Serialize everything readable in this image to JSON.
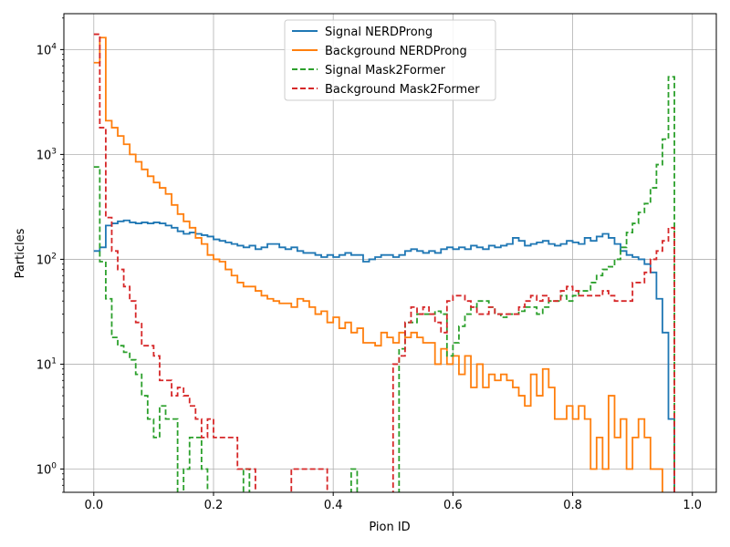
{
  "chart_data": {
    "type": "line",
    "xlabel": "Pion ID",
    "ylabel": "Particles",
    "xlim": [
      -0.05,
      1.04
    ],
    "ylim": [
      0.6,
      22000
    ],
    "yscale": "log",
    "grid": true,
    "legend_position": "top-center",
    "x_ticks": [
      "0.0",
      "0.2",
      "0.4",
      "0.6",
      "0.8",
      "1.0"
    ],
    "x_tick_values": [
      0,
      0.2,
      0.4,
      0.6,
      0.8,
      1.0
    ],
    "y_ticks": [
      "10^0",
      "10^1",
      "10^2",
      "10^3",
      "10^4"
    ],
    "y_tick_values": [
      1,
      10,
      100,
      1000,
      10000
    ],
    "bin_width": 0.01,
    "series": [
      {
        "name": "Signal NERDProng",
        "color": "#1f77b4",
        "dashed": false,
        "values": [
          120,
          130,
          210,
          220,
          230,
          235,
          225,
          220,
          225,
          220,
          225,
          220,
          210,
          200,
          185,
          175,
          180,
          175,
          170,
          165,
          155,
          150,
          145,
          140,
          135,
          130,
          135,
          125,
          130,
          140,
          140,
          130,
          125,
          130,
          120,
          115,
          115,
          110,
          105,
          110,
          105,
          110,
          115,
          110,
          110,
          95,
          100,
          105,
          110,
          110,
          105,
          110,
          120,
          125,
          120,
          115,
          120,
          115,
          125,
          130,
          125,
          130,
          125,
          135,
          130,
          125,
          135,
          130,
          135,
          140,
          160,
          150,
          135,
          140,
          145,
          150,
          140,
          135,
          140,
          150,
          145,
          140,
          160,
          150,
          165,
          175,
          160,
          140,
          120,
          110,
          105,
          100,
          90,
          75,
          42,
          20,
          3
        ]
      },
      {
        "name": "Background NERDProng",
        "color": "#ff7f0e",
        "dashed": false,
        "values": [
          7500,
          13000,
          2100,
          1800,
          1500,
          1250,
          1000,
          850,
          720,
          620,
          540,
          480,
          420,
          330,
          270,
          230,
          200,
          160,
          140,
          110,
          100,
          95,
          80,
          70,
          60,
          55,
          55,
          50,
          45,
          42,
          40,
          38,
          38,
          35,
          42,
          40,
          35,
          30,
          32,
          25,
          28,
          22,
          25,
          20,
          22,
          16,
          16,
          15,
          20,
          18,
          16,
          20,
          18,
          20,
          18,
          16,
          16,
          10,
          14,
          10,
          12,
          8,
          12,
          6,
          10,
          6,
          8,
          7,
          8,
          7,
          6,
          5,
          4,
          8,
          5,
          9,
          6,
          3,
          3,
          4,
          3,
          4,
          3,
          1,
          2,
          1,
          5,
          2,
          3,
          1,
          2,
          3,
          2,
          1,
          1,
          0.1
        ]
      },
      {
        "name": "Signal Mask2Former",
        "color": "#2ca02c",
        "dashed": false,
        "values": [
          760,
          95,
          42,
          18,
          15,
          13,
          11,
          8,
          5,
          3,
          2,
          4,
          3,
          3,
          0.4,
          1,
          2,
          2,
          1,
          0.4,
          0.4,
          0.4,
          0.4,
          0.4,
          0.4,
          1,
          0.4,
          0.4,
          0.4,
          0.4,
          0.4,
          0.4,
          0.4,
          0.4,
          0.4,
          0.4,
          0.4,
          0.4,
          0.4,
          0.4,
          0.4,
          0.4,
          0.4,
          1,
          0.4,
          0.4,
          0.4,
          0.4,
          0.4,
          0.4,
          0.4,
          14,
          25,
          25,
          30,
          30,
          30,
          32,
          30,
          12,
          16,
          23,
          30,
          35,
          40,
          40,
          35,
          30,
          28,
          30,
          30,
          32,
          35,
          35,
          30,
          35,
          40,
          40,
          45,
          40,
          45,
          50,
          50,
          60,
          70,
          80,
          85,
          100,
          130,
          180,
          220,
          280,
          340,
          480,
          800,
          1400,
          5500
        ]
      },
      {
        "name": "Background Mask2Former",
        "color": "#d62728",
        "dashed": false,
        "values": [
          14000,
          1800,
          250,
          120,
          80,
          55,
          40,
          25,
          15,
          15,
          12,
          7,
          7,
          5,
          6,
          5,
          4,
          3,
          2,
          3,
          2,
          2,
          2,
          2,
          1,
          1,
          1,
          0.4,
          0.4,
          0.4,
          0.4,
          0.4,
          0.4,
          1,
          1,
          1,
          1,
          1,
          1,
          0.4,
          0.4,
          0.4,
          0.4,
          0.4,
          0.4,
          0.4,
          0.4,
          0.4,
          0.4,
          0.4,
          10,
          12,
          25,
          35,
          30,
          35,
          30,
          25,
          20,
          40,
          45,
          45,
          40,
          35,
          30,
          30,
          35,
          30,
          30,
          30,
          30,
          35,
          40,
          45,
          40,
          45,
          40,
          40,
          50,
          55,
          50,
          45,
          45,
          45,
          45,
          50,
          45,
          40,
          40,
          40,
          60,
          60,
          75,
          100,
          120,
          150,
          200
        ]
      }
    ]
  }
}
